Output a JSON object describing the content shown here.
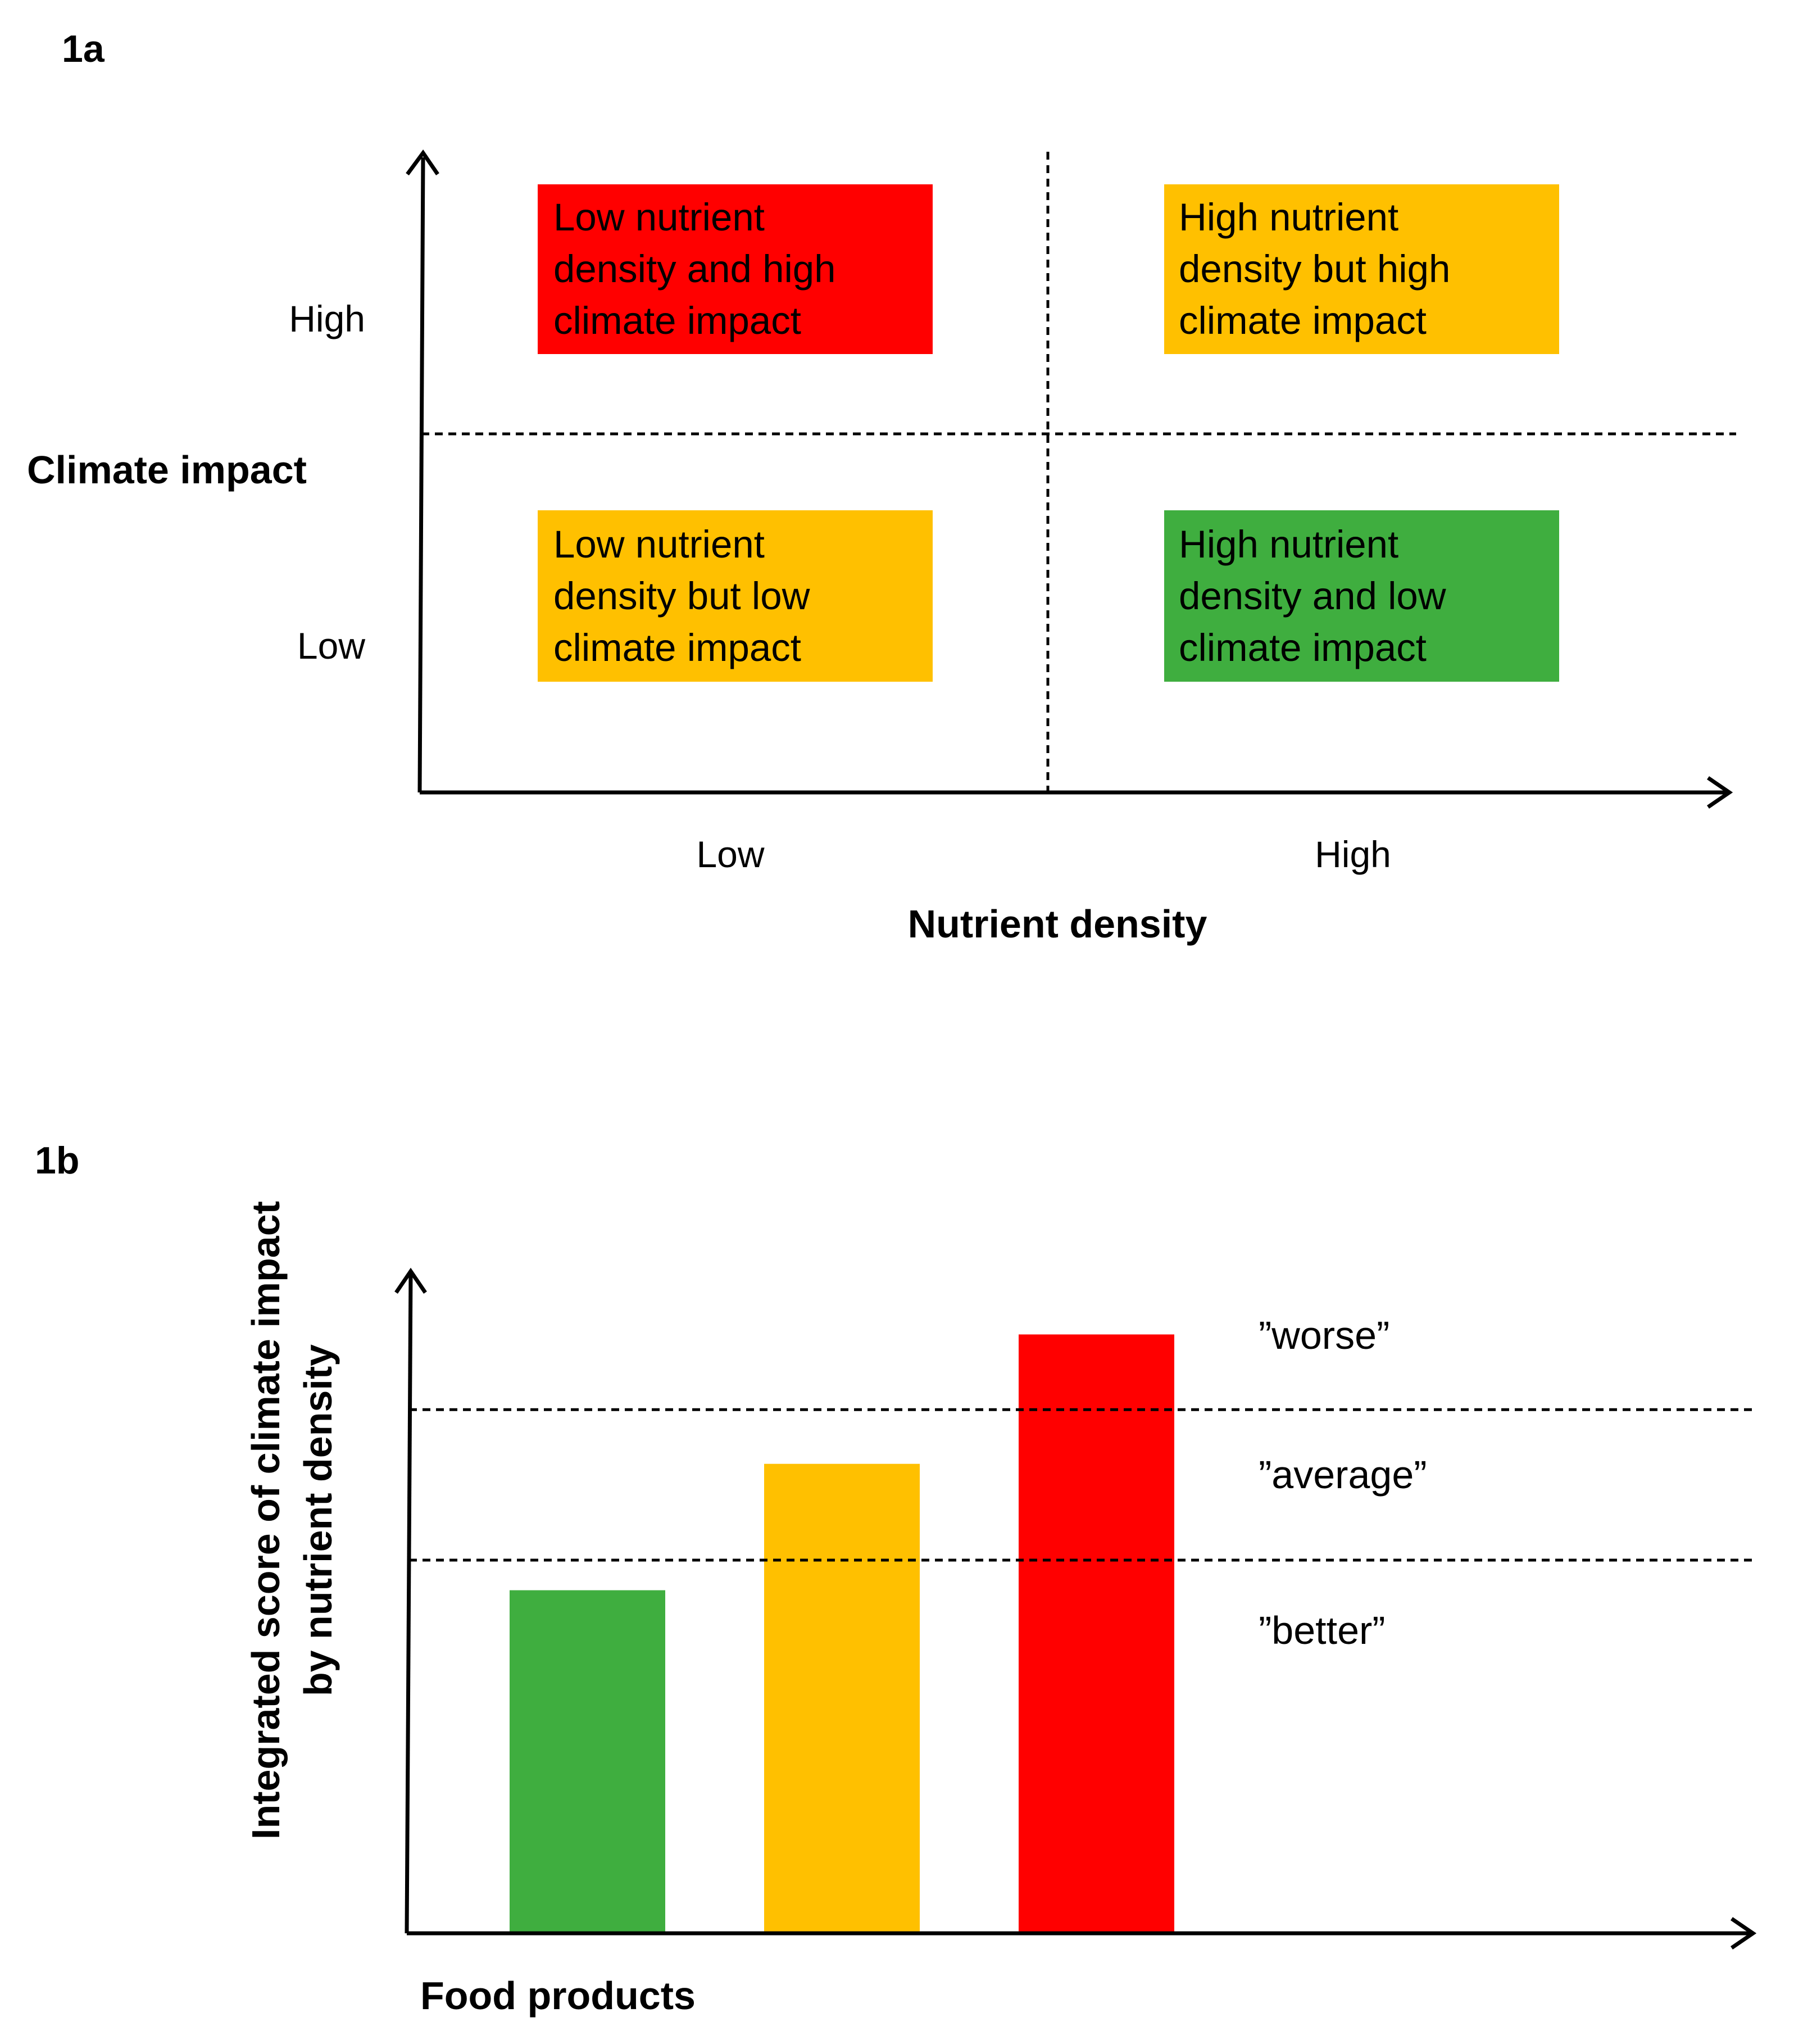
{
  "chart_data": [
    {
      "panel": "1a",
      "type": "quadrant",
      "xlabel": "Nutrient density",
      "ylabel": "Climate impact",
      "x_ticks": [
        "Low",
        "High"
      ],
      "y_ticks": [
        "High",
        "Low"
      ],
      "quadrants": [
        {
          "x": "Low",
          "y": "High",
          "lines": [
            "Low nutrient",
            "density and high",
            "climate impact"
          ],
          "color": "#ff0000"
        },
        {
          "x": "High",
          "y": "High",
          "lines": [
            "High nutrient",
            "density but high",
            "climate impact"
          ],
          "color": "#ffc000"
        },
        {
          "x": "Low",
          "y": "Low",
          "lines": [
            "Low nutrient",
            "density but low",
            "climate impact"
          ],
          "color": "#ffc000"
        },
        {
          "x": "High",
          "y": "Low",
          "lines": [
            "High nutrient",
            "density and low",
            "climate impact"
          ],
          "color": "#3fae3f"
        }
      ]
    },
    {
      "panel": "1b",
      "type": "bar",
      "xlabel": "Food products",
      "ylabel_lines": [
        "Integrated score of climate impact",
        "by nutrient density"
      ],
      "values": [
        57,
        78,
        99.5
      ],
      "colors": [
        "#3fae3f",
        "#ffc000",
        "#ff0000"
      ],
      "ylim": [
        0,
        110
      ],
      "thresholds": [
        62,
        87
      ],
      "zones": [
        "”worse”",
        "”average”",
        "”better”"
      ]
    }
  ]
}
